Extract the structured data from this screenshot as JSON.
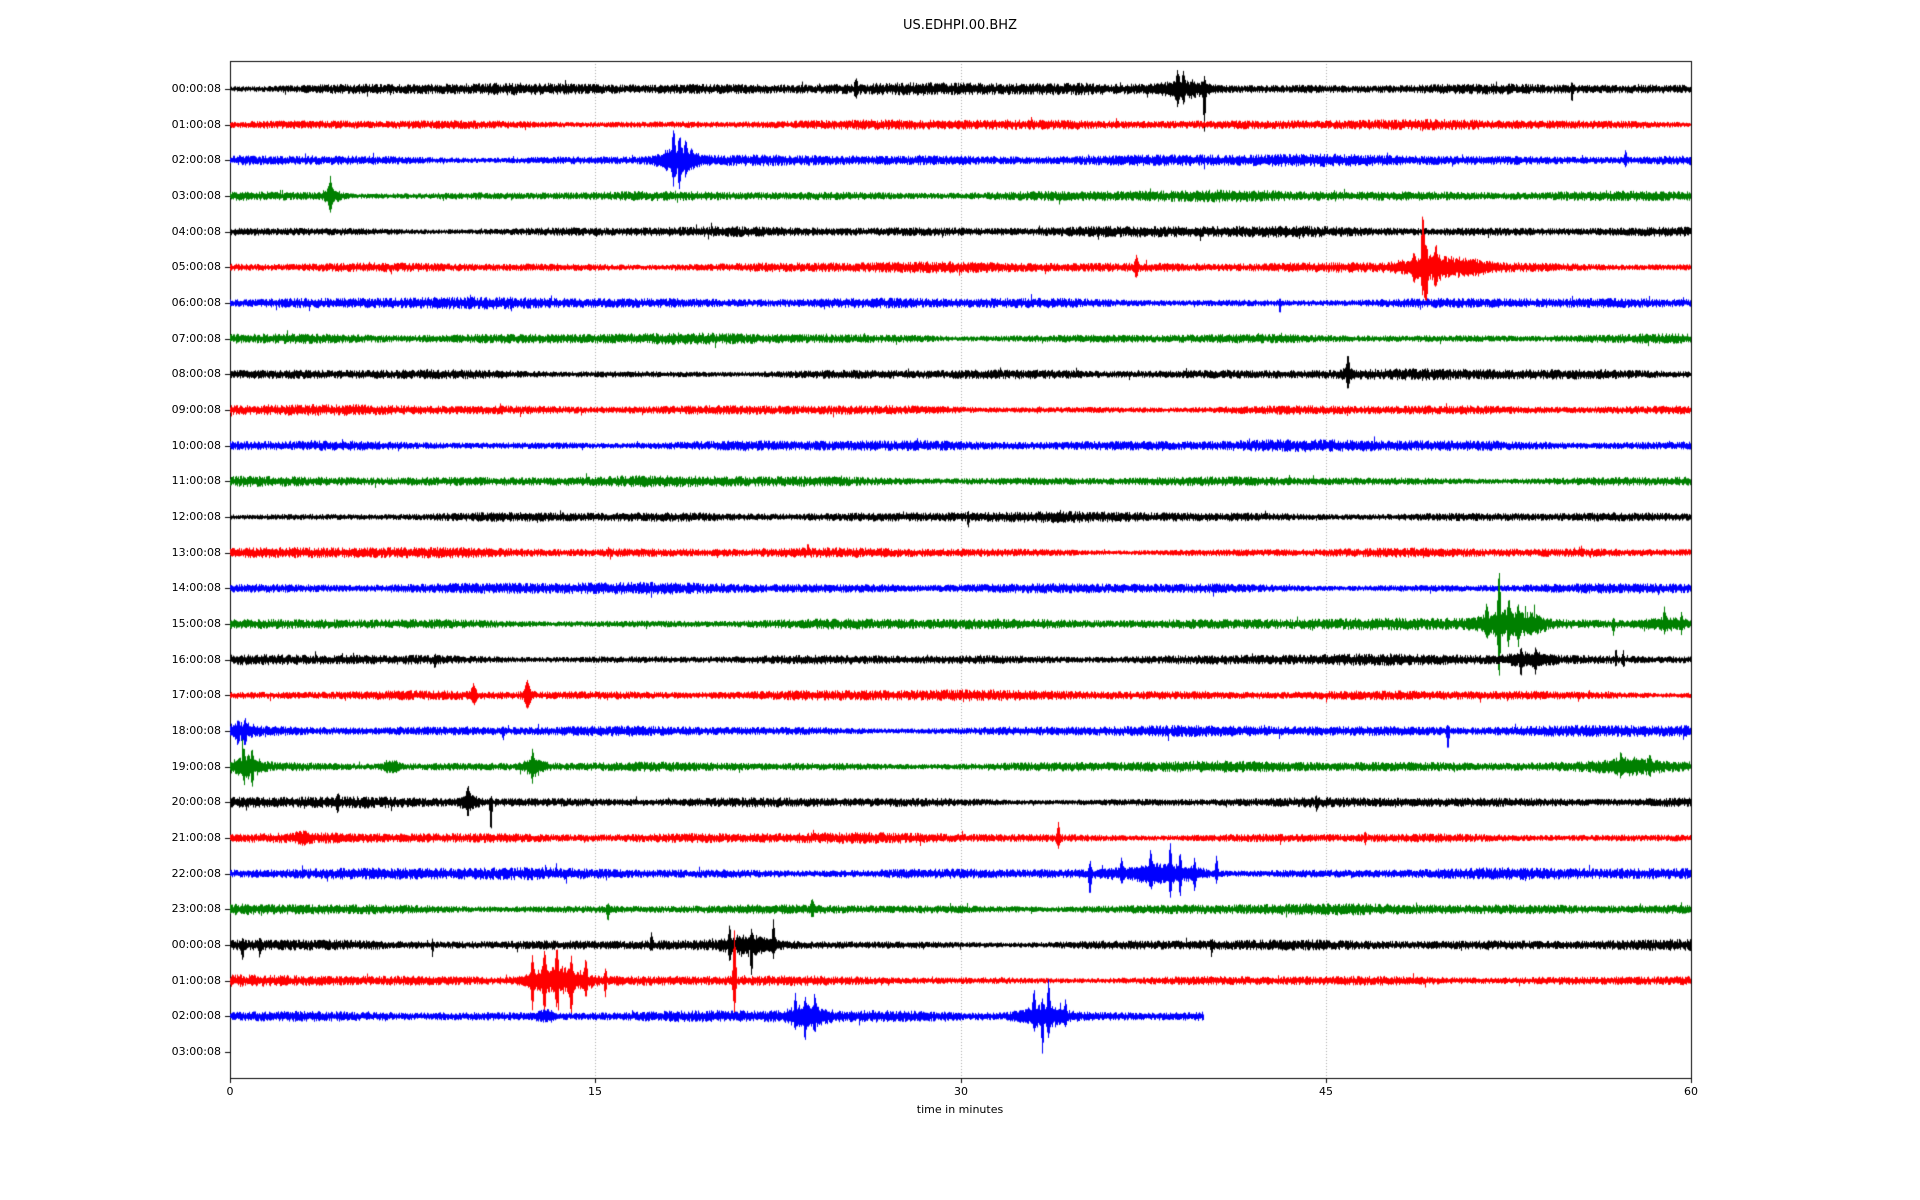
{
  "window": {
    "background": "#ffffff"
  },
  "chart_data": {
    "type": "line",
    "subtype": "helicorder-day-plot-seismogram",
    "title": "US.EDHPI.00.BHZ",
    "xlabel": "time in minutes",
    "xlim": [
      0,
      60
    ],
    "xticks": [
      "0",
      "15",
      "30",
      "45",
      "60"
    ],
    "xtick_values": [
      0,
      15,
      30,
      45,
      60
    ],
    "grid_x_minutes": [
      15,
      30,
      45
    ],
    "grid_on": true,
    "grid_color": "#aaaaaa",
    "legend": "none",
    "palette": {
      "black": "#000000",
      "red": "#ff0000",
      "blue": "#0000ff",
      "green": "#008000"
    },
    "rows": [
      {
        "label": "00:00:08",
        "color": "black",
        "duration": 60,
        "noise": 5.0,
        "events": [
          {
            "k": "spike",
            "t": 25.7,
            "w": 0.1,
            "up": 8,
            "dn": 8
          },
          {
            "k": "burst",
            "t": 39.2,
            "w": 1.4,
            "a": 8
          },
          {
            "k": "spike",
            "t": 38.9,
            "w": 0.1,
            "up": 14,
            "dn": 10
          },
          {
            "k": "spike",
            "t": 39.15,
            "w": 0.08,
            "up": 12,
            "dn": 8
          },
          {
            "k": "spike",
            "t": 40.0,
            "w": 0.09,
            "up": 6,
            "dn": 36
          },
          {
            "k": "spike",
            "t": 55.1,
            "w": 0.07,
            "up": 4,
            "dn": 12
          }
        ]
      },
      {
        "label": "01:00:08",
        "color": "red",
        "duration": 60,
        "noise": 4.2,
        "events": []
      },
      {
        "label": "02:00:08",
        "color": "blue",
        "duration": 60,
        "noise": 4.8,
        "events": [
          {
            "k": "burst",
            "t": 18.4,
            "w": 1.1,
            "a": 12
          },
          {
            "k": "spike",
            "t": 18.2,
            "w": 0.1,
            "up": 22,
            "dn": 14
          },
          {
            "k": "spike",
            "t": 18.45,
            "w": 0.09,
            "up": 16,
            "dn": 20
          },
          {
            "k": "spike",
            "t": 18.7,
            "w": 0.08,
            "up": 12,
            "dn": 8
          },
          {
            "k": "spike",
            "t": 57.3,
            "w": 0.08,
            "up": 9,
            "dn": 5
          }
        ]
      },
      {
        "label": "03:00:08",
        "color": "green",
        "duration": 60,
        "noise": 4.5,
        "events": [
          {
            "k": "burst",
            "t": 4.15,
            "w": 0.5,
            "a": 6
          },
          {
            "k": "spike",
            "t": 4.1,
            "w": 0.1,
            "up": 12,
            "dn": 12
          }
        ]
      },
      {
        "label": "04:00:08",
        "color": "black",
        "duration": 60,
        "noise": 4.5,
        "events": []
      },
      {
        "label": "05:00:08",
        "color": "red",
        "duration": 60,
        "noise": 4.4,
        "events": [
          {
            "k": "spike",
            "t": 37.2,
            "w": 0.12,
            "up": 9,
            "dn": 9
          },
          {
            "k": "burst",
            "t": 49.3,
            "w": 1.6,
            "a": 10
          },
          {
            "k": "spike",
            "t": 48.6,
            "w": 0.1,
            "up": 10,
            "dn": 8
          },
          {
            "k": "spike",
            "t": 48.97,
            "w": 0.1,
            "up": 52,
            "dn": 20
          },
          {
            "k": "spike",
            "t": 49.1,
            "w": 0.1,
            "up": 14,
            "dn": 33
          },
          {
            "k": "spike",
            "t": 49.5,
            "w": 0.1,
            "up": 12,
            "dn": 10
          },
          {
            "k": "burst",
            "t": 51.0,
            "w": 1.0,
            "a": 5
          }
        ]
      },
      {
        "label": "06:00:08",
        "color": "blue",
        "duration": 60,
        "noise": 4.6,
        "events": [
          {
            "k": "spike",
            "t": 43.1,
            "w": 0.07,
            "up": 2,
            "dn": 10
          }
        ]
      },
      {
        "label": "07:00:08",
        "color": "green",
        "duration": 60,
        "noise": 4.4,
        "events": []
      },
      {
        "label": "08:00:08",
        "color": "black",
        "duration": 60,
        "noise": 4.3,
        "events": [
          {
            "k": "burst",
            "t": 45.9,
            "w": 0.3,
            "a": 4
          },
          {
            "k": "spike",
            "t": 45.9,
            "w": 0.1,
            "up": 15,
            "dn": 9
          }
        ]
      },
      {
        "label": "09:00:08",
        "color": "red",
        "duration": 60,
        "noise": 4.2,
        "events": []
      },
      {
        "label": "10:00:08",
        "color": "blue",
        "duration": 60,
        "noise": 4.6,
        "events": []
      },
      {
        "label": "11:00:08",
        "color": "green",
        "duration": 60,
        "noise": 4.4,
        "events": []
      },
      {
        "label": "12:00:08",
        "color": "black",
        "duration": 60,
        "noise": 4.2,
        "events": [
          {
            "k": "spike",
            "t": 30.3,
            "w": 0.06,
            "up": 2,
            "dn": 7
          }
        ]
      },
      {
        "label": "13:00:08",
        "color": "red",
        "duration": 60,
        "noise": 4.3,
        "events": []
      },
      {
        "label": "14:00:08",
        "color": "blue",
        "duration": 60,
        "noise": 4.6,
        "events": []
      },
      {
        "label": "15:00:08",
        "color": "green",
        "duration": 60,
        "noise": 4.6,
        "events": [
          {
            "k": "burst",
            "t": 52.4,
            "w": 1.6,
            "a": 11
          },
          {
            "k": "spike",
            "t": 51.6,
            "w": 0.1,
            "up": 14,
            "dn": 10
          },
          {
            "k": "spike",
            "t": 52.1,
            "w": 0.1,
            "up": 46,
            "dn": 45
          },
          {
            "k": "spike",
            "t": 52.5,
            "w": 0.1,
            "up": 18,
            "dn": 12
          },
          {
            "k": "spike",
            "t": 52.9,
            "w": 0.09,
            "up": 12,
            "dn": 14
          },
          {
            "k": "burst",
            "t": 53.6,
            "w": 0.5,
            "a": 6
          },
          {
            "k": "spike",
            "t": 56.8,
            "w": 0.07,
            "up": 3,
            "dn": 9
          },
          {
            "k": "burst",
            "t": 59.0,
            "w": 1.4,
            "a": 5
          },
          {
            "k": "spike",
            "t": 58.9,
            "w": 0.08,
            "up": 12,
            "dn": 6
          },
          {
            "k": "spike",
            "t": 59.6,
            "w": 0.07,
            "up": 8,
            "dn": 6
          }
        ]
      },
      {
        "label": "16:00:08",
        "color": "black",
        "duration": 60,
        "noise": 4.4,
        "events": [
          {
            "k": "spike",
            "t": 8.4,
            "w": 0.07,
            "up": 3,
            "dn": 8
          },
          {
            "k": "burst",
            "t": 53.3,
            "w": 1.2,
            "a": 5
          },
          {
            "k": "spike",
            "t": 53.0,
            "w": 0.08,
            "up": 6,
            "dn": 12
          },
          {
            "k": "spike",
            "t": 53.6,
            "w": 0.07,
            "up": 5,
            "dn": 10
          },
          {
            "k": "spike",
            "t": 56.9,
            "w": 0.06,
            "up": 9,
            "dn": 4
          },
          {
            "k": "spike",
            "t": 57.2,
            "w": 0.06,
            "up": 7,
            "dn": 4
          }
        ]
      },
      {
        "label": "17:00:08",
        "color": "red",
        "duration": 60,
        "noise": 4.3,
        "events": [
          {
            "k": "spike",
            "t": 10.0,
            "w": 0.15,
            "up": 9,
            "dn": 7
          },
          {
            "k": "burst",
            "t": 12.2,
            "w": 0.3,
            "a": 4
          },
          {
            "k": "spike",
            "t": 12.2,
            "w": 0.15,
            "up": 10,
            "dn": 9
          }
        ]
      },
      {
        "label": "18:00:08",
        "color": "blue",
        "duration": 60,
        "noise": 4.7,
        "events": [
          {
            "k": "burst",
            "t": 0.45,
            "w": 0.7,
            "a": 5
          },
          {
            "k": "spike",
            "t": 0.3,
            "w": 0.08,
            "up": 4,
            "dn": 9
          },
          {
            "k": "spike",
            "t": 0.6,
            "w": 0.08,
            "up": 4,
            "dn": 8
          },
          {
            "k": "spike",
            "t": 11.2,
            "w": 0.07,
            "up": 3,
            "dn": 7
          },
          {
            "k": "spike",
            "t": 50.0,
            "w": 0.08,
            "up": 4,
            "dn": 17
          }
        ]
      },
      {
        "label": "19:00:08",
        "color": "green",
        "duration": 60,
        "noise": 4.5,
        "events": [
          {
            "k": "burst",
            "t": 0.7,
            "w": 0.8,
            "a": 8
          },
          {
            "k": "spike",
            "t": 0.55,
            "w": 0.09,
            "up": 12,
            "dn": 10
          },
          {
            "k": "spike",
            "t": 0.9,
            "w": 0.08,
            "up": 10,
            "dn": 12
          },
          {
            "k": "burst",
            "t": 6.6,
            "w": 0.5,
            "a": 5
          },
          {
            "k": "burst",
            "t": 12.5,
            "w": 0.6,
            "a": 7
          },
          {
            "k": "spike",
            "t": 12.4,
            "w": 0.08,
            "up": 10,
            "dn": 8
          },
          {
            "k": "burst",
            "t": 57.5,
            "w": 1.6,
            "a": 5
          },
          {
            "k": "spike",
            "t": 57.1,
            "w": 0.07,
            "up": 9,
            "dn": 6
          },
          {
            "k": "spike",
            "t": 58.3,
            "w": 0.07,
            "up": 8,
            "dn": 7
          }
        ]
      },
      {
        "label": "20:00:08",
        "color": "black",
        "duration": 60,
        "noise": 4.4,
        "events": [
          {
            "k": "spike",
            "t": 4.4,
            "w": 0.1,
            "up": 6,
            "dn": 6
          },
          {
            "k": "burst",
            "t": 9.8,
            "w": 0.5,
            "a": 6
          },
          {
            "k": "spike",
            "t": 9.75,
            "w": 0.08,
            "up": 10,
            "dn": 8
          },
          {
            "k": "spike",
            "t": 10.7,
            "w": 0.08,
            "up": 4,
            "dn": 30
          },
          {
            "k": "spike",
            "t": 44.6,
            "w": 0.06,
            "up": 3,
            "dn": 7
          }
        ]
      },
      {
        "label": "21:00:08",
        "color": "red",
        "duration": 60,
        "noise": 4.3,
        "events": [
          {
            "k": "burst",
            "t": 3.0,
            "w": 0.4,
            "a": 4
          },
          {
            "k": "spike",
            "t": 34.0,
            "w": 0.1,
            "up": 13,
            "dn": 9
          },
          {
            "k": "spike",
            "t": 46.6,
            "w": 0.06,
            "up": 5,
            "dn": 4
          }
        ]
      },
      {
        "label": "22:00:08",
        "color": "blue",
        "duration": 60,
        "noise": 4.8,
        "events": [
          {
            "k": "spike",
            "t": 35.3,
            "w": 0.09,
            "up": 10,
            "dn": 21
          },
          {
            "k": "burst",
            "t": 38.3,
            "w": 2.4,
            "a": 8
          },
          {
            "k": "spike",
            "t": 36.6,
            "w": 0.08,
            "up": 13,
            "dn": 7
          },
          {
            "k": "spike",
            "t": 37.8,
            "w": 0.09,
            "up": 18,
            "dn": 11
          },
          {
            "k": "spike",
            "t": 38.6,
            "w": 0.09,
            "up": 25,
            "dn": 16
          },
          {
            "k": "spike",
            "t": 39.0,
            "w": 0.08,
            "up": 14,
            "dn": 18
          },
          {
            "k": "spike",
            "t": 39.6,
            "w": 0.08,
            "up": 12,
            "dn": 14
          },
          {
            "k": "spike",
            "t": 40.5,
            "w": 0.08,
            "up": 16,
            "dn": 7
          }
        ]
      },
      {
        "label": "23:00:08",
        "color": "green",
        "duration": 60,
        "noise": 4.5,
        "events": [
          {
            "k": "spike",
            "t": 15.5,
            "w": 0.09,
            "up": 4,
            "dn": 10
          },
          {
            "k": "spike",
            "t": 23.9,
            "w": 0.1,
            "up": 8,
            "dn": 6
          }
        ]
      },
      {
        "label": "00:00:08",
        "color": "black",
        "duration": 60,
        "noise": 4.6,
        "events": [
          {
            "k": "spike",
            "t": 0.5,
            "w": 0.08,
            "up": 5,
            "dn": 12
          },
          {
            "k": "spike",
            "t": 1.2,
            "w": 0.08,
            "up": 4,
            "dn": 10
          },
          {
            "k": "spike",
            "t": 8.3,
            "w": 0.07,
            "up": 3,
            "dn": 9
          },
          {
            "k": "spike",
            "t": 17.3,
            "w": 0.08,
            "up": 11,
            "dn": 4
          },
          {
            "k": "burst",
            "t": 21.3,
            "w": 1.3,
            "a": 8
          },
          {
            "k": "spike",
            "t": 20.5,
            "w": 0.09,
            "up": 14,
            "dn": 10
          },
          {
            "k": "spike",
            "t": 21.4,
            "w": 0.08,
            "up": 8,
            "dn": 22
          },
          {
            "k": "spike",
            "t": 22.3,
            "w": 0.09,
            "up": 20,
            "dn": 8
          },
          {
            "k": "spike",
            "t": 40.3,
            "w": 0.07,
            "up": 3,
            "dn": 9
          }
        ]
      },
      {
        "label": "01:00:08",
        "color": "red",
        "duration": 60,
        "noise": 4.4,
        "events": [
          {
            "k": "burst",
            "t": 13.4,
            "w": 1.6,
            "a": 12
          },
          {
            "k": "spike",
            "t": 12.4,
            "w": 0.1,
            "up": 20,
            "dn": 24
          },
          {
            "k": "spike",
            "t": 12.9,
            "w": 0.1,
            "up": 24,
            "dn": 28
          },
          {
            "k": "spike",
            "t": 13.4,
            "w": 0.1,
            "up": 28,
            "dn": 18
          },
          {
            "k": "spike",
            "t": 14.0,
            "w": 0.1,
            "up": 16,
            "dn": 32
          },
          {
            "k": "spike",
            "t": 14.6,
            "w": 0.1,
            "up": 18,
            "dn": 12
          },
          {
            "k": "spike",
            "t": 15.4,
            "w": 0.08,
            "up": 10,
            "dn": 12
          },
          {
            "k": "spike",
            "t": 20.7,
            "w": 0.1,
            "up": 48,
            "dn": 32
          }
        ]
      },
      {
        "label": "02:00:08",
        "color": "blue",
        "duration": 40,
        "noise": 4.7,
        "events": [
          {
            "k": "burst",
            "t": 12.9,
            "w": 0.5,
            "a": 5
          },
          {
            "k": "burst",
            "t": 23.7,
            "w": 1.1,
            "a": 8
          },
          {
            "k": "spike",
            "t": 23.2,
            "w": 0.08,
            "up": 15,
            "dn": 8
          },
          {
            "k": "spike",
            "t": 23.6,
            "w": 0.08,
            "up": 10,
            "dn": 20
          },
          {
            "k": "spike",
            "t": 24.0,
            "w": 0.08,
            "up": 18,
            "dn": 10
          },
          {
            "k": "burst",
            "t": 33.4,
            "w": 1.3,
            "a": 9
          },
          {
            "k": "spike",
            "t": 33.0,
            "w": 0.08,
            "up": 22,
            "dn": 10
          },
          {
            "k": "spike",
            "t": 33.35,
            "w": 0.08,
            "up": 8,
            "dn": 32
          },
          {
            "k": "spike",
            "t": 33.6,
            "w": 0.09,
            "up": 28,
            "dn": 14
          },
          {
            "k": "spike",
            "t": 34.3,
            "w": 0.08,
            "up": 13,
            "dn": 6
          }
        ]
      },
      {
        "label": "03:00:08",
        "color": "green",
        "duration": 0,
        "noise": 0,
        "events": []
      }
    ]
  }
}
